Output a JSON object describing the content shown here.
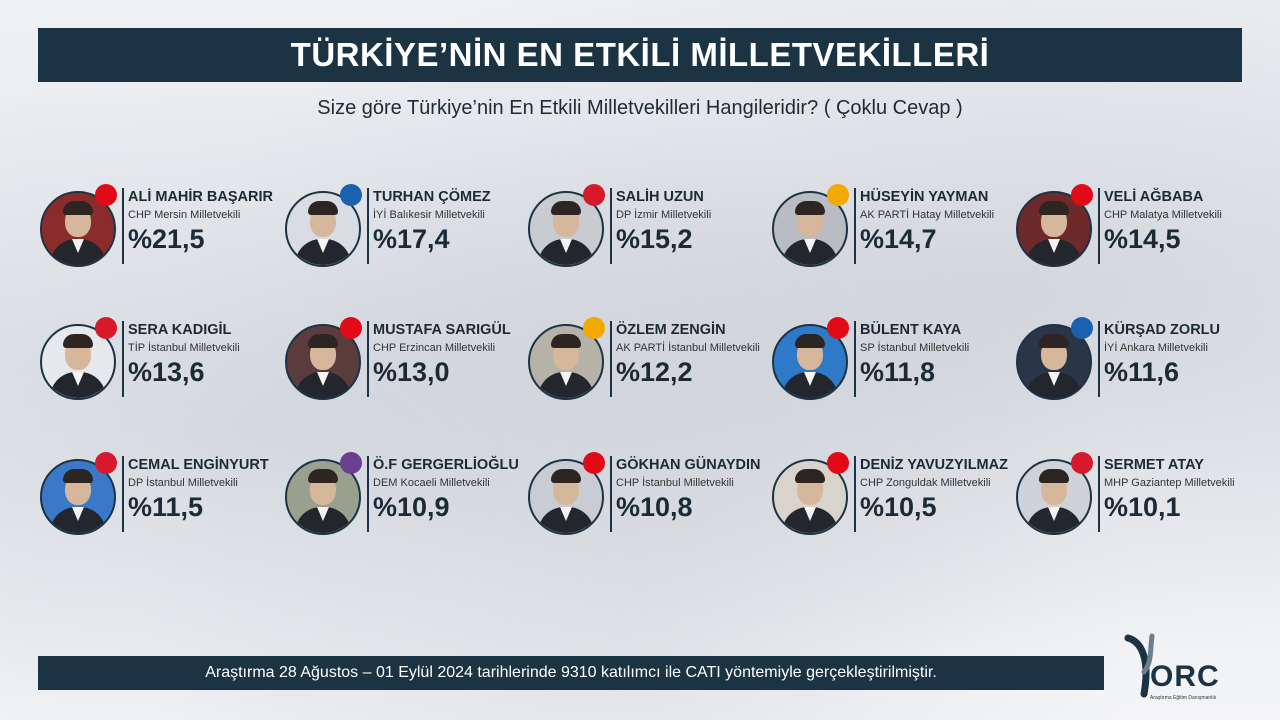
{
  "header": {
    "title": "TÜRKİYE’NİN EN ETKİLİ MİLLETVEKİLLERİ",
    "subtitle": "Size göre Türkiye’nin En Etkili Milletvekilleri Hangileridir?  ( Çoklu Cevap )"
  },
  "rows": [
    [
      {
        "name": "ALİ MAHİR BAŞARIR",
        "role": "CHP Mersin Milletvekili",
        "pct": "%21,5",
        "badge": "CHP",
        "badge_color": "#e30a17",
        "bg": "#8b2c2c"
      },
      {
        "name": "TURHAN ÇÖMEZ",
        "role": "İYİ Balıkesir Milletvekili",
        "pct": "%17,4",
        "badge": "İYİ",
        "badge_color": "#1a62b0",
        "bg": "#d9dde3"
      },
      {
        "name": "SALİH UZUN",
        "role": "DP İzmir Milletvekili",
        "pct": "%15,2",
        "badge": "DP",
        "badge_color": "#d7192c",
        "bg": "#c8cbd0"
      },
      {
        "name": "HÜSEYİN YAYMAN",
        "role": "AK PARTİ Hatay Milletvekili",
        "pct": "%14,7",
        "badge": "AK",
        "badge_color": "#f2a900",
        "bg": "#b9bcc2"
      },
      {
        "name": "VELİ AĞBABA",
        "role": "CHP Malatya Milletvekili",
        "pct": "%14,5",
        "badge": "CHP",
        "badge_color": "#e30a17",
        "bg": "#6e2a2a"
      }
    ],
    [
      {
        "name": "SERA KADIGİL",
        "role": "TİP İstanbul Milletvekili",
        "pct": "%13,6",
        "badge": "TİP",
        "badge_color": "#d7192c",
        "bg": "#e6e8ec"
      },
      {
        "name": "MUSTAFA SARIGÜL",
        "role": "CHP Erzincan Milletvekili",
        "pct": "%13,0",
        "badge": "CHP",
        "badge_color": "#e30a17",
        "bg": "#5a3c3c"
      },
      {
        "name": "ÖZLEM ZENGİN",
        "role": "AK PARTİ İstanbul Milletvekili",
        "pct": "%12,2",
        "badge": "AK",
        "badge_color": "#f2a900",
        "bg": "#b7b2a8"
      },
      {
        "name": "BÜLENT KAYA",
        "role": "SP İstanbul Milletvekili",
        "pct": "%11,8",
        "badge": "SP",
        "badge_color": "#e30a17",
        "bg": "#2f79c9"
      },
      {
        "name": "KÜRŞAD ZORLU",
        "role": "İYİ Ankara Milletvekili",
        "pct": "%11,6",
        "badge": "İYİ",
        "badge_color": "#1a62b0",
        "bg": "#2b3548"
      }
    ],
    [
      {
        "name": "CEMAL ENGİNYURT",
        "role": "DP İstanbul Milletvekili",
        "pct": "%11,5",
        "badge": "DP",
        "badge_color": "#d7192c",
        "bg": "#3b79c8"
      },
      {
        "name": "Ö.F GERGERLİOĞLU",
        "role": "DEM Kocaeli Milletvekili",
        "pct": "%10,9",
        "badge": "DEM",
        "badge_color": "#6a3f8f",
        "bg": "#9aa08e"
      },
      {
        "name": "GÖKHAN GÜNAYDIN",
        "role": "CHP İstanbul Milletvekili",
        "pct": "%10,8",
        "badge": "CHP",
        "badge_color": "#e30a17",
        "bg": "#c9ccd2"
      },
      {
        "name": "DENİZ YAVUZYILMAZ",
        "role": "CHP Zonguldak Milletvekili",
        "pct": "%10,5",
        "badge": "CHP",
        "badge_color": "#e30a17",
        "bg": "#d8d4cc"
      },
      {
        "name": "SERMET ATAY",
        "role": "MHP Gaziantep Milletvekili",
        "pct": "%10,1",
        "badge": "MHP",
        "badge_color": "#d7192c",
        "bg": "#cfd2d8"
      }
    ]
  ],
  "footer": {
    "text": "Araştırma 28 Ağustos – 01 Eylül 2024 tarihlerinde 9310 katılımcı ile CATI yöntemiyle gerçekleştirilmiştir."
  },
  "logo": {
    "text": "ORC",
    "sub": "Araştırma Eğitim Danışmanlık"
  }
}
